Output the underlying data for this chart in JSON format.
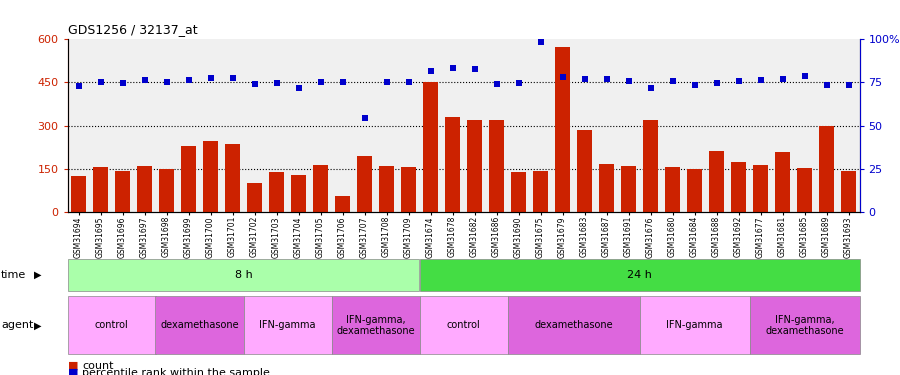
{
  "title": "GDS1256 / 32137_at",
  "samples": [
    "GSM31694",
    "GSM31695",
    "GSM31696",
    "GSM31697",
    "GSM31698",
    "GSM31699",
    "GSM31700",
    "GSM31701",
    "GSM31702",
    "GSM31703",
    "GSM31704",
    "GSM31705",
    "GSM31706",
    "GSM31707",
    "GSM31708",
    "GSM31709",
    "GSM31674",
    "GSM31678",
    "GSM31682",
    "GSM31686",
    "GSM31690",
    "GSM31675",
    "GSM31679",
    "GSM31683",
    "GSM31687",
    "GSM31691",
    "GSM31676",
    "GSM31680",
    "GSM31684",
    "GSM31688",
    "GSM31692",
    "GSM31677",
    "GSM31681",
    "GSM31685",
    "GSM31689",
    "GSM31693"
  ],
  "counts": [
    125,
    155,
    143,
    158,
    150,
    230,
    245,
    235,
    102,
    140,
    128,
    162,
    55,
    195,
    158,
    155,
    450,
    330,
    320,
    320,
    138,
    142,
    575,
    285,
    165,
    158,
    318,
    155,
    148,
    212,
    172,
    163,
    207,
    153,
    298,
    142
  ],
  "percentiles": [
    438,
    450,
    449,
    457,
    453,
    458,
    466,
    466,
    445,
    447,
    432,
    450,
    453,
    327,
    452,
    450,
    490,
    500,
    497,
    445,
    447,
    592,
    468,
    463,
    463,
    455,
    432,
    455,
    443,
    447,
    455,
    460,
    462,
    471,
    443,
    443
  ],
  "ylim": [
    0,
    600
  ],
  "yticks_left": [
    0,
    150,
    300,
    450,
    600
  ],
  "ytick_labels_right": [
    "0",
    "25",
    "50",
    "75",
    "100%"
  ],
  "bar_color": "#cc2200",
  "dot_color": "#0000cc",
  "bar_width": 0.65,
  "time_groups": [
    {
      "label": "8 h",
      "start": 0,
      "end": 16,
      "color": "#aaffaa"
    },
    {
      "label": "24 h",
      "start": 16,
      "end": 36,
      "color": "#44dd44"
    }
  ],
  "agent_groups": [
    {
      "label": "control",
      "start": 0,
      "end": 4,
      "color": "#ffaaff"
    },
    {
      "label": "dexamethasone",
      "start": 4,
      "end": 8,
      "color": "#dd66dd"
    },
    {
      "label": "IFN-gamma",
      "start": 8,
      "end": 12,
      "color": "#ffaaff"
    },
    {
      "label": "IFN-gamma,\ndexamethasone",
      "start": 12,
      "end": 16,
      "color": "#dd66dd"
    },
    {
      "label": "control",
      "start": 16,
      "end": 20,
      "color": "#ffaaff"
    },
    {
      "label": "dexamethasone",
      "start": 20,
      "end": 26,
      "color": "#dd66dd"
    },
    {
      "label": "IFN-gamma",
      "start": 26,
      "end": 31,
      "color": "#ffaaff"
    },
    {
      "label": "IFN-gamma,\ndexamethasone",
      "start": 31,
      "end": 36,
      "color": "#dd66dd"
    }
  ],
  "bg_color": "#f0f0f0",
  "n": 36
}
